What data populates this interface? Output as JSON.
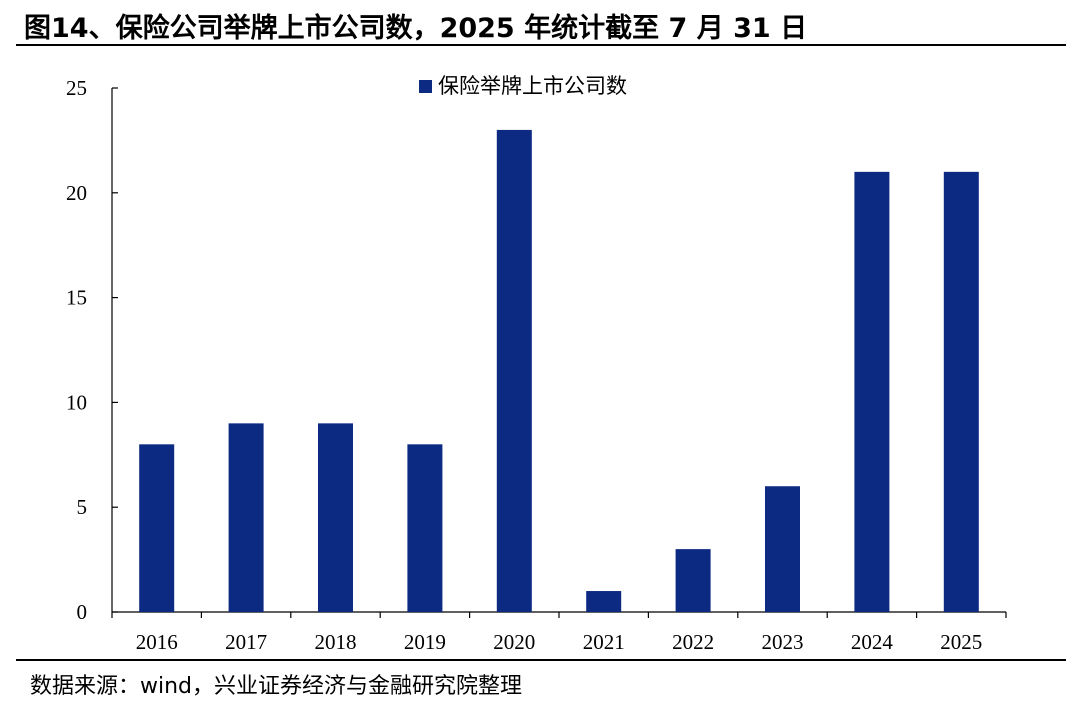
{
  "figure": {
    "title": "图14、保险公司举牌上市公司数，2025 年统计截至 7 月 31 日",
    "source": "数据来源：wind，兴业证券经济与金融研究院整理"
  },
  "colors": {
    "bar": "#0c2a82",
    "axis": "#000000"
  },
  "chart_data": {
    "type": "bar",
    "title": "",
    "xlabel": "",
    "ylabel": "",
    "categories": [
      "2016",
      "2017",
      "2018",
      "2019",
      "2020",
      "2021",
      "2022",
      "2023",
      "2024",
      "2025"
    ],
    "series": [
      {
        "name": "保险举牌上市公司数",
        "values": [
          8,
          9,
          9,
          8,
          23,
          1,
          3,
          6,
          21,
          21
        ]
      }
    ],
    "ylim": [
      0,
      25
    ],
    "yticks": [
      0,
      5,
      10,
      15,
      20,
      25
    ],
    "grid": false,
    "legend_position": "top-center"
  }
}
